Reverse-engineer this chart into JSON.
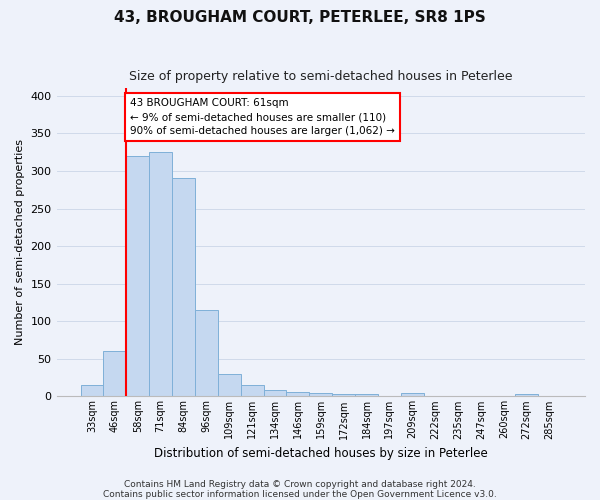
{
  "title1": "43, BROUGHAM COURT, PETERLEE, SR8 1PS",
  "title2": "Size of property relative to semi-detached houses in Peterlee",
  "xlabel": "Distribution of semi-detached houses by size in Peterlee",
  "ylabel": "Number of semi-detached properties",
  "categories": [
    "33sqm",
    "46sqm",
    "58sqm",
    "71sqm",
    "84sqm",
    "96sqm",
    "109sqm",
    "121sqm",
    "134sqm",
    "146sqm",
    "159sqm",
    "172sqm",
    "184sqm",
    "197sqm",
    "209sqm",
    "222sqm",
    "235sqm",
    "247sqm",
    "260sqm",
    "272sqm",
    "285sqm"
  ],
  "values": [
    15,
    60,
    320,
    325,
    290,
    115,
    30,
    15,
    8,
    6,
    5,
    3,
    3,
    0,
    4,
    0,
    0,
    0,
    0,
    3,
    0
  ],
  "bar_color": "#c5d8f0",
  "bar_edge_color": "#7fb0d8",
  "grid_color": "#d0daea",
  "background_color": "#eef2fa",
  "red_line_index": 2,
  "annotation_text": "43 BROUGHAM COURT: 61sqm\n← 9% of semi-detached houses are smaller (110)\n90% of semi-detached houses are larger (1,062) →",
  "annotation_box_color": "white",
  "annotation_box_edge": "red",
  "ylim": [
    0,
    410
  ],
  "yticks": [
    0,
    50,
    100,
    150,
    200,
    250,
    300,
    350,
    400
  ],
  "footnote1": "Contains HM Land Registry data © Crown copyright and database right 2024.",
  "footnote2": "Contains public sector information licensed under the Open Government Licence v3.0."
}
